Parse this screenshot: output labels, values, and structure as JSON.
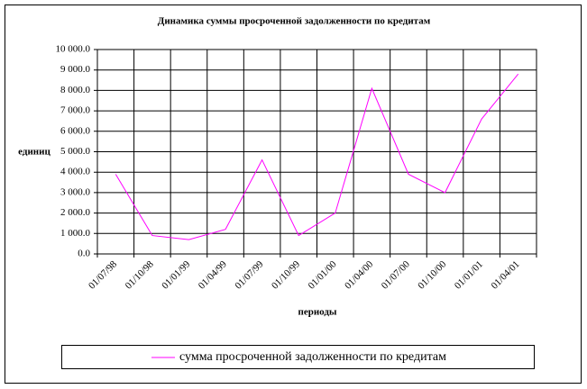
{
  "chart_data": {
    "type": "line",
    "title": "Динамика суммы просроченной задолженности по кредитам",
    "y_label": "единиц",
    "x_label": "периоды",
    "categories": [
      "01/07/98",
      "01/10/98",
      "01/01/99",
      "01/04/99",
      "01/07/99",
      "01/10/99",
      "01/01/00",
      "01/04/00",
      "01/07/00",
      "01/10/00",
      "01/01/01",
      "01/04/01"
    ],
    "series": [
      {
        "name": "сумма просроченной задолженности по кредитам",
        "color": "#ff00ff",
        "values": [
          3900,
          900,
          700,
          1200,
          4600,
          900,
          2000,
          8100,
          3900,
          3000,
          6600,
          8800
        ]
      }
    ],
    "ylim": [
      0,
      10000
    ],
    "yticks": [
      {
        "value": 0,
        "label": "0.0"
      },
      {
        "value": 1000,
        "label": "1 000.0"
      },
      {
        "value": 2000,
        "label": "2 000.0"
      },
      {
        "value": 3000,
        "label": "3 000.0"
      },
      {
        "value": 4000,
        "label": "4 000.0"
      },
      {
        "value": 5000,
        "label": "5 000.0"
      },
      {
        "value": 6000,
        "label": "6 000.0"
      },
      {
        "value": 7000,
        "label": "7 000.0"
      },
      {
        "value": 8000,
        "label": "8 000.0"
      },
      {
        "value": 9000,
        "label": "9 000.0"
      },
      {
        "value": 10000,
        "label": "10 000.0"
      }
    ],
    "grid": true,
    "legend": "bottom"
  }
}
